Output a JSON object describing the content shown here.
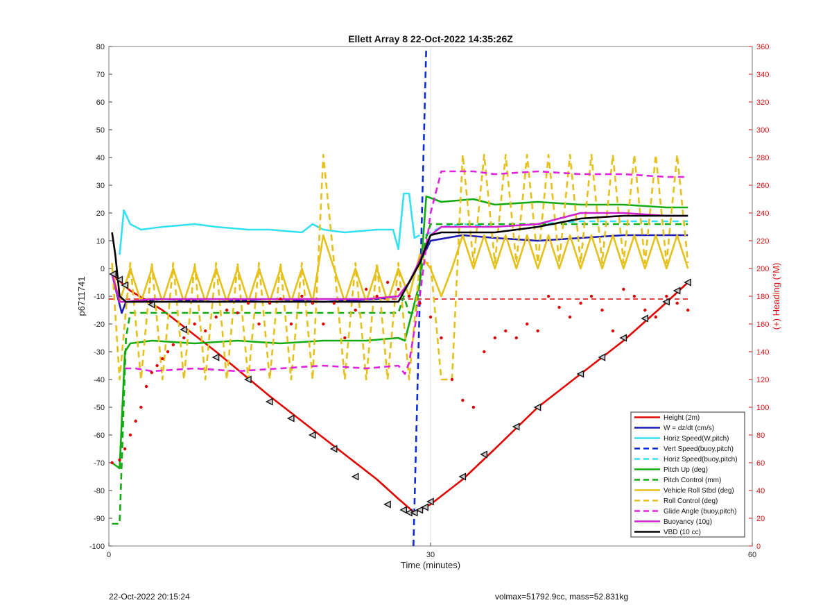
{
  "chart_data": {
    "type": "line",
    "title": "Ellett Array 8 22-Oct-2022 14:35:26Z",
    "xlabel": "Time (minutes)",
    "ylabel": "p6711741",
    "y2label": "(+) Heading (°M)",
    "xlim": [
      0,
      60
    ],
    "ylim": [
      -100,
      80
    ],
    "y2lim": [
      0,
      360
    ],
    "xticks": [
      0,
      30,
      60
    ],
    "yticks": [
      -100,
      -90,
      -80,
      -70,
      -60,
      -50,
      -40,
      -30,
      -20,
      -10,
      0,
      10,
      20,
      30,
      40,
      50,
      60,
      70,
      80
    ],
    "y2ticks": [
      0,
      20,
      40,
      60,
      80,
      100,
      120,
      140,
      160,
      180,
      200,
      220,
      240,
      260,
      280,
      300,
      320,
      340,
      360
    ],
    "grid": "x",
    "legend_position": "bottom-right",
    "series": [
      {
        "name": "Height (2m)",
        "color": "#e00000",
        "style": "solid",
        "x": [
          0.3,
          2,
          5,
          10,
          15,
          20,
          25,
          27,
          28.5,
          30,
          33,
          36,
          40,
          44,
          48,
          51.5,
          54
        ],
        "y": [
          -2,
          -8,
          -15,
          -30,
          -46,
          -61,
          -76,
          -83,
          -88,
          -85,
          -76,
          -65,
          -50,
          -38,
          -26,
          -14,
          -5
        ]
      },
      {
        "name": "W = dz/dt (cm/s)",
        "color": "#1a1ab8",
        "style": "solid",
        "x": [
          0.3,
          0.8,
          1.2,
          1.6,
          2.5,
          5,
          10,
          15,
          20,
          25,
          27,
          28,
          29,
          30,
          33,
          36,
          40,
          44,
          48,
          52,
          54
        ],
        "y": [
          -2,
          -10,
          -16,
          -12,
          -12,
          -11,
          -12,
          -11,
          -12,
          -11,
          -10,
          -5,
          2,
          10,
          12,
          11,
          10,
          11,
          12,
          12,
          12
        ]
      },
      {
        "name": "Horiz Speed(W,pitch)",
        "color": "#33e0f0",
        "style": "solid",
        "x": [
          1,
          1.4,
          2,
          3,
          5,
          8,
          10,
          13,
          15,
          18,
          19,
          20,
          22,
          25,
          26.5,
          27,
          27.5,
          28,
          28.5,
          29
        ],
        "y": [
          5,
          21,
          16,
          14,
          15,
          16,
          15,
          14,
          14,
          13,
          16,
          14,
          13,
          14,
          14,
          7,
          27,
          27,
          11,
          12
        ]
      },
      {
        "name": "Vert Speed(buoy,pitch)",
        "color": "#0a2ad8",
        "style": "dash",
        "x": [
          28.4,
          29.6
        ],
        "y": [
          -100,
          80
        ]
      },
      {
        "name": "Horiz Speed(buoy,pitch)",
        "color": "#33e0f0",
        "style": "dash",
        "x": [
          29.5,
          31,
          33,
          36,
          40,
          44,
          48,
          52,
          54
        ],
        "y": [
          12,
          15,
          16,
          15,
          16,
          17,
          17,
          17,
          17
        ]
      },
      {
        "name": "Pitch Up (deg)",
        "color": "#11aa11",
        "style": "solid",
        "x": [
          0.3,
          1,
          1.5,
          2,
          4,
          8,
          12,
          16,
          20,
          24,
          27,
          27.6,
          28,
          29,
          29.6,
          31,
          34,
          36,
          40,
          44,
          48,
          52,
          54
        ],
        "y": [
          -70,
          -72,
          -30,
          -27,
          -26,
          -27,
          -26,
          -27,
          -26,
          -26,
          -25,
          -26,
          -20,
          -5,
          26,
          24,
          25,
          23,
          24,
          23,
          23,
          22,
          22
        ]
      },
      {
        "name": "Pitch Control (mm)",
        "color": "#11aa11",
        "style": "dash",
        "x": [
          0.3,
          1,
          1.2,
          1.6,
          2,
          26,
          27,
          27.5,
          28,
          28.6,
          29,
          29.5,
          30,
          54
        ],
        "y": [
          -92,
          -92,
          -70,
          -25,
          -16,
          -16,
          -16,
          -10,
          -16,
          -16,
          -5,
          10,
          16,
          16
        ]
      },
      {
        "name": "Vehicle Roll Stbd (deg)",
        "color": "#e6c01a",
        "style": "solid",
        "x": [
          0.3,
          1,
          2,
          3,
          4,
          5,
          6,
          7,
          8,
          9,
          10,
          11,
          12,
          13,
          14,
          15,
          16,
          17,
          18,
          19,
          20,
          21,
          22,
          23,
          24,
          25,
          26,
          27,
          28,
          29,
          30,
          31,
          32,
          33,
          34,
          35,
          36,
          37,
          38,
          39,
          40,
          41,
          42,
          43,
          44,
          45,
          46,
          47,
          48,
          49,
          50,
          51,
          52,
          53,
          54
        ],
        "y": [
          0,
          -12,
          0,
          -12,
          0,
          -12,
          0,
          -12,
          0,
          -12,
          0,
          -12,
          0,
          -12,
          0,
          -12,
          0,
          -12,
          0,
          -12,
          12,
          0,
          -12,
          0,
          -12,
          0,
          -12,
          0,
          -10,
          5,
          0,
          -10,
          0,
          12,
          0,
          12,
          0,
          12,
          0,
          12,
          0,
          12,
          0,
          12,
          0,
          12,
          0,
          12,
          0,
          12,
          0,
          12,
          0,
          12,
          0
        ]
      },
      {
        "name": "Roll Control (deg)",
        "color": "#e6c01a",
        "style": "dash",
        "x": [
          0.3,
          1,
          2,
          3,
          4,
          5,
          6,
          7,
          8,
          9,
          10,
          11,
          12,
          13,
          14,
          15,
          16,
          17,
          18,
          19,
          20,
          21,
          22,
          23,
          24,
          25,
          26,
          27,
          28,
          29,
          30,
          31,
          32,
          33,
          34,
          35,
          36,
          37,
          38,
          39,
          40,
          41,
          42,
          43,
          44,
          45,
          46,
          47,
          48,
          49,
          50,
          51,
          52,
          53,
          54
        ],
        "y": [
          2,
          -40,
          2,
          -40,
          2,
          -40,
          2,
          -40,
          2,
          -40,
          2,
          -40,
          2,
          -40,
          2,
          -40,
          2,
          -40,
          2,
          -40,
          41,
          2,
          -40,
          2,
          -40,
          2,
          -40,
          2,
          -40,
          2,
          2,
          -40,
          -40,
          41,
          2,
          41,
          2,
          41,
          2,
          41,
          2,
          41,
          2,
          41,
          2,
          41,
          2,
          41,
          2,
          41,
          2,
          41,
          2,
          41,
          2
        ]
      },
      {
        "name": "Glide Angle (buoy,pitch)",
        "color": "#e022e0",
        "style": "dash",
        "x": [
          1.5,
          2.5,
          4,
          8,
          12,
          16,
          20,
          24,
          27,
          27.6,
          28,
          29,
          30,
          31,
          34,
          36,
          40,
          44,
          48,
          52,
          54
        ],
        "y": [
          -36,
          -36,
          -37,
          -36,
          -37,
          -36,
          -35,
          -36,
          -35,
          -38,
          -34,
          -10,
          20,
          35,
          35,
          34,
          35,
          34,
          34,
          33,
          33
        ]
      },
      {
        "name": "Buoyancy (10g)",
        "color": "#d021d0",
        "style": "solid",
        "x": [
          0.3,
          1,
          1.6,
          4,
          8,
          12,
          16,
          20,
          24,
          27,
          28,
          29,
          30,
          31,
          34,
          36,
          40,
          44,
          48,
          52,
          54
        ],
        "y": [
          -2,
          -12,
          -12,
          -11,
          -11,
          -11,
          -11,
          -11,
          -11,
          -10,
          -5,
          3,
          12,
          15,
          15,
          15,
          16,
          20,
          20,
          19,
          19
        ]
      },
      {
        "name": "VBD (10 cc)",
        "color": "#000000",
        "style": "solid",
        "x": [
          0.3,
          0.6,
          1,
          1.6,
          4,
          8,
          12,
          16,
          20,
          24,
          27,
          28,
          29,
          30,
          31,
          34,
          36,
          40,
          44,
          48,
          52,
          54
        ],
        "y": [
          13,
          5,
          -10,
          -12,
          -12,
          -12,
          -12,
          -12,
          -12,
          -12,
          -12,
          -5,
          2,
          12,
          13,
          13,
          13,
          15,
          18,
          19,
          19,
          19
        ]
      }
    ],
    "heading": {
      "axis": "right",
      "color": "#e00000",
      "reference": 178,
      "x": [
        0.3,
        1,
        1.5,
        2,
        2.5,
        3,
        3.5,
        4,
        4.5,
        5,
        5.5,
        6,
        7,
        8,
        9,
        10,
        11,
        12,
        13,
        14,
        15,
        16,
        17,
        18,
        19,
        20,
        21,
        22,
        23,
        24,
        25,
        26,
        27,
        28,
        29,
        30,
        31,
        32,
        33,
        34,
        35,
        36,
        37,
        38,
        39,
        40,
        41,
        42,
        43,
        44,
        45,
        46,
        47,
        48,
        49,
        50,
        51,
        52,
        53,
        54
      ],
      "y": [
        60,
        62,
        70,
        80,
        90,
        100,
        115,
        125,
        130,
        135,
        140,
        145,
        150,
        160,
        155,
        165,
        170,
        168,
        175,
        160,
        175,
        178,
        160,
        180,
        175,
        160,
        175,
        150,
        170,
        185,
        180,
        190,
        185,
        180,
        175,
        165,
        150,
        120,
        105,
        100,
        140,
        150,
        155,
        150,
        160,
        155,
        180,
        172,
        165,
        175,
        180,
        170,
        155,
        185,
        180,
        170,
        165,
        180,
        175,
        170
      ]
    },
    "markers": {
      "symbol": "triangle-left",
      "x": [
        0.4,
        1,
        1.5,
        4,
        7,
        10,
        13,
        15,
        17,
        19,
        21,
        23,
        26,
        27.5,
        28,
        28.5,
        29,
        29.5,
        30,
        33,
        35,
        38,
        40,
        44,
        46,
        48,
        50,
        52,
        53,
        54
      ],
      "y": [
        -2,
        -4,
        -6,
        -13,
        -22,
        -32,
        -40,
        -48,
        -54,
        -60,
        -65,
        -75,
        -85,
        -87,
        -88,
        -88,
        -87,
        -86,
        -84,
        -75,
        -67,
        -57,
        -50,
        -38,
        -32,
        -25,
        -18,
        -12,
        -8,
        -5
      ]
    }
  },
  "footer": {
    "left": "22-Oct-2022 20:15:24",
    "right": "volmax=51792.9cc, mass=52.831kg"
  }
}
